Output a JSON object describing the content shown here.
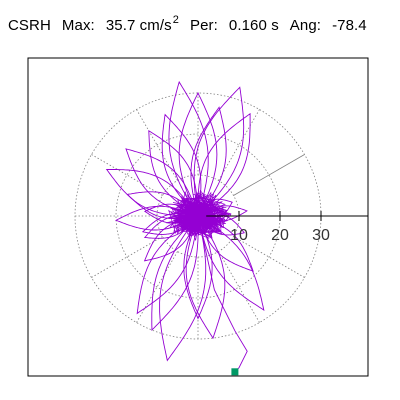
{
  "header": {
    "station": "CSRH",
    "max_label": "Max:",
    "max_value": "35.7 cm/s",
    "max_exp": "2",
    "per_label": "Per:",
    "per_value": "0.160 s",
    "ang_label": "Ang:",
    "ang_value": "-78.4"
  },
  "colors": {
    "trace": "#9400d3",
    "marker": "#009966",
    "grid": "#808080",
    "axis": "#000000"
  },
  "chart_data": {
    "type": "polar-particle-motion",
    "radial_ticks": [
      10,
      20,
      30
    ],
    "radial_max": 40,
    "angular_grid_deg": [
      0,
      30,
      60,
      90,
      120,
      150,
      180,
      210,
      240,
      270,
      300,
      330
    ],
    "petals": [
      {
        "angle_deg": -102,
        "length": 36,
        "width": 4.5
      },
      {
        "angle_deg": -112,
        "length": 30,
        "width": 3.5
      },
      {
        "angle_deg": -83,
        "length": 30,
        "width": 4
      },
      {
        "angle_deg": -90,
        "length": 25,
        "width": 3
      },
      {
        "angle_deg": -55,
        "length": 28,
        "width": 3.2
      },
      {
        "angle_deg": -45,
        "length": 19,
        "width": 2.5
      },
      {
        "angle_deg": -122,
        "length": 28,
        "width": 3.5
      },
      {
        "angle_deg": -140,
        "length": 17,
        "width": 2.5
      },
      {
        "angle_deg": -158,
        "length": 14,
        "width": 2
      },
      {
        "angle_deg": -20,
        "length": 12,
        "width": 2
      },
      {
        "angle_deg": 6,
        "length": 12,
        "width": 1.6
      },
      {
        "angle_deg": 22,
        "length": 9,
        "width": 2
      },
      {
        "angle_deg": 63,
        "length": 28,
        "width": 4
      },
      {
        "angle_deg": 72,
        "length": 33,
        "width": 4.5
      },
      {
        "angle_deg": 79,
        "length": 27,
        "width": 3.5
      },
      {
        "angle_deg": 90,
        "length": 30,
        "width": 4
      },
      {
        "angle_deg": 98,
        "length": 33,
        "width": 4
      },
      {
        "angle_deg": 108,
        "length": 26,
        "width": 3.5
      },
      {
        "angle_deg": 120,
        "length": 24,
        "width": 3.5
      },
      {
        "angle_deg": 137,
        "length": 24,
        "width": 3.5
      },
      {
        "angle_deg": 153,
        "length": 25,
        "width": 3.5
      },
      {
        "angle_deg": 163,
        "length": 18,
        "width": 2.5
      },
      {
        "angle_deg": 175,
        "length": 13,
        "width": 2
      },
      {
        "angle_deg": 183,
        "length": 20,
        "width": 2.5
      },
      {
        "angle_deg": 196,
        "length": 14,
        "width": 2
      }
    ],
    "end_marker": {
      "x": 9,
      "y": -38
    }
  }
}
